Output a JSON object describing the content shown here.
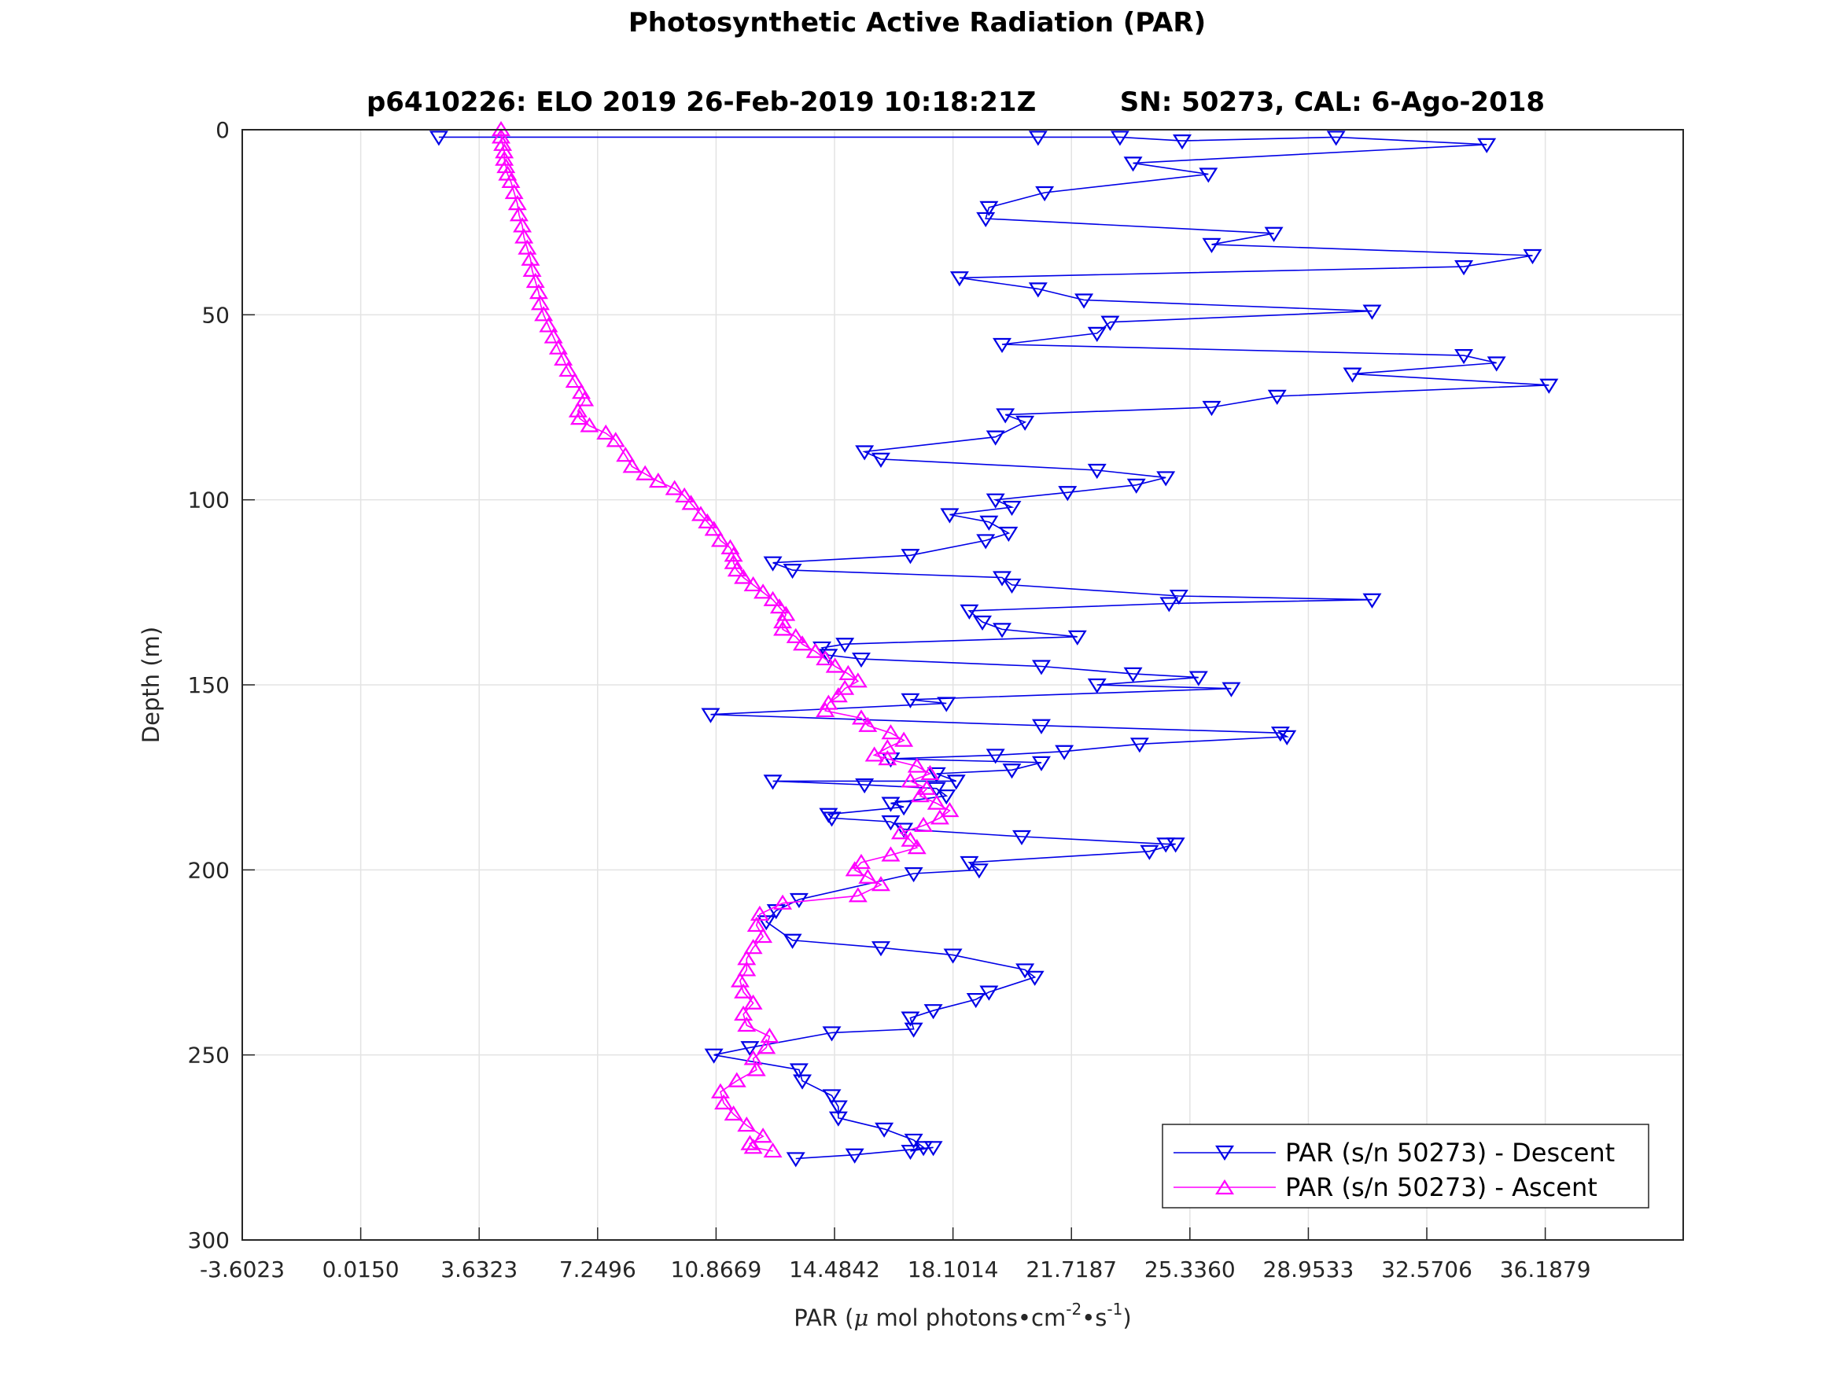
{
  "chart_data": {
    "type": "line",
    "title": "Photosynthetic Active Radiation (PAR)",
    "subtitle": "p6410226: ELO 2019 26-Feb-2019 10:18:21Z         SN: 50273, CAL: 6-Ago-2018",
    "xlabel": "PAR (μ mol photons•cm⁻²•s⁻¹)",
    "ylabel": "Depth (m)",
    "xlim": [
      -3.6023,
      40.4
    ],
    "ylim": [
      0,
      300
    ],
    "y_reversed": true,
    "grid": true,
    "legend_position": "bottom-right",
    "xticks": [
      -3.6023,
      0.015,
      3.6323,
      7.2496,
      10.8669,
      14.4842,
      18.1014,
      21.7187,
      25.336,
      28.9533,
      32.5706,
      36.1879
    ],
    "xtick_labels": [
      "-3.6023",
      "0.0150",
      "3.6323",
      "7.2496",
      "10.8669",
      "14.4842",
      "18.1014",
      "21.7187",
      "25.3360",
      "28.9533",
      "32.5706",
      "36.1879"
    ],
    "yticks": [
      0,
      50,
      100,
      150,
      200,
      250,
      300
    ],
    "ytick_labels": [
      "0",
      "50",
      "100",
      "150",
      "200",
      "250",
      "300"
    ],
    "series": [
      {
        "name": "PAR (s/n 50273) - Descent",
        "color": "#0000e6",
        "marker": "triangle-down",
        "points": [
          [
            2.4,
            2
          ],
          [
            20.7,
            2
          ],
          [
            23.2,
            2
          ],
          [
            25.1,
            3
          ],
          [
            29.8,
            2
          ],
          [
            34.4,
            4
          ],
          [
            23.6,
            9
          ],
          [
            25.9,
            12
          ],
          [
            20.9,
            17
          ],
          [
            19.2,
            21
          ],
          [
            19.1,
            24
          ],
          [
            27.9,
            28
          ],
          [
            26.0,
            31
          ],
          [
            35.8,
            34
          ],
          [
            33.7,
            37
          ],
          [
            18.3,
            40
          ],
          [
            20.7,
            43
          ],
          [
            22.1,
            46
          ],
          [
            30.9,
            49
          ],
          [
            22.9,
            52
          ],
          [
            22.5,
            55
          ],
          [
            19.6,
            58
          ],
          [
            33.7,
            61
          ],
          [
            34.7,
            63
          ],
          [
            30.3,
            66
          ],
          [
            36.3,
            69
          ],
          [
            28.0,
            72
          ],
          [
            26.0,
            75
          ],
          [
            19.7,
            77
          ],
          [
            20.3,
            79
          ],
          [
            19.4,
            83
          ],
          [
            15.4,
            87
          ],
          [
            15.9,
            89
          ],
          [
            22.5,
            92
          ],
          [
            24.6,
            94
          ],
          [
            23.7,
            96
          ],
          [
            21.6,
            98
          ],
          [
            19.4,
            100
          ],
          [
            19.9,
            102
          ],
          [
            18.0,
            104
          ],
          [
            19.2,
            106
          ],
          [
            19.8,
            109
          ],
          [
            19.1,
            111
          ],
          [
            16.8,
            115
          ],
          [
            12.6,
            117
          ],
          [
            13.2,
            119
          ],
          [
            19.6,
            121
          ],
          [
            19.9,
            123
          ],
          [
            25.0,
            126
          ],
          [
            30.9,
            127
          ],
          [
            24.7,
            128
          ],
          [
            18.6,
            130
          ],
          [
            19.0,
            133
          ],
          [
            19.6,
            135
          ],
          [
            21.9,
            137
          ],
          [
            14.8,
            139
          ],
          [
            14.1,
            140
          ],
          [
            14.3,
            142
          ],
          [
            15.3,
            143
          ],
          [
            20.8,
            145
          ],
          [
            23.6,
            147
          ],
          [
            25.6,
            148
          ],
          [
            22.5,
            150
          ],
          [
            26.6,
            151
          ],
          [
            16.8,
            154
          ],
          [
            17.9,
            155
          ],
          [
            10.7,
            158
          ],
          [
            20.8,
            161
          ],
          [
            28.1,
            163
          ],
          [
            28.3,
            164
          ],
          [
            23.8,
            166
          ],
          [
            21.5,
            168
          ],
          [
            19.4,
            169
          ],
          [
            16.2,
            170
          ],
          [
            20.8,
            171
          ],
          [
            19.9,
            173
          ],
          [
            17.6,
            174
          ],
          [
            18.2,
            176
          ],
          [
            12.6,
            176
          ],
          [
            15.4,
            177
          ],
          [
            17.6,
            178
          ],
          [
            17.9,
            180
          ],
          [
            16.2,
            182
          ],
          [
            16.6,
            183
          ],
          [
            14.3,
            185
          ],
          [
            14.4,
            186
          ],
          [
            16.2,
            187
          ],
          [
            16.6,
            189
          ],
          [
            20.2,
            191
          ],
          [
            24.6,
            193
          ],
          [
            24.9,
            193
          ],
          [
            24.1,
            195
          ],
          [
            18.6,
            198
          ],
          [
            18.9,
            200
          ],
          [
            16.9,
            201
          ],
          [
            13.4,
            208
          ],
          [
            12.7,
            211
          ],
          [
            12.4,
            214
          ],
          [
            13.2,
            219
          ],
          [
            15.9,
            221
          ],
          [
            18.1,
            223
          ],
          [
            20.3,
            227
          ],
          [
            20.6,
            229
          ],
          [
            19.2,
            233
          ],
          [
            18.8,
            235
          ],
          [
            17.5,
            238
          ],
          [
            16.8,
            240
          ],
          [
            16.9,
            243
          ],
          [
            14.4,
            244
          ],
          [
            11.9,
            248
          ],
          [
            10.8,
            250
          ],
          [
            13.4,
            254
          ],
          [
            13.5,
            257
          ],
          [
            14.4,
            261
          ],
          [
            14.6,
            264
          ],
          [
            14.6,
            267
          ],
          [
            16.0,
            270
          ],
          [
            16.9,
            273
          ],
          [
            17.2,
            275
          ],
          [
            16.8,
            276
          ],
          [
            17.5,
            275
          ],
          [
            15.1,
            277
          ],
          [
            13.3,
            278
          ]
        ]
      },
      {
        "name": "PAR (s/n 50273) - Ascent",
        "color": "#ff00ff",
        "marker": "triangle-up",
        "points": [
          [
            4.3,
            0
          ],
          [
            4.3,
            2
          ],
          [
            4.35,
            4
          ],
          [
            4.4,
            6
          ],
          [
            4.4,
            8
          ],
          [
            4.45,
            10
          ],
          [
            4.5,
            12
          ],
          [
            4.6,
            14
          ],
          [
            4.7,
            17
          ],
          [
            4.8,
            20
          ],
          [
            4.85,
            23
          ],
          [
            4.95,
            26
          ],
          [
            5.0,
            29
          ],
          [
            5.1,
            32
          ],
          [
            5.2,
            35
          ],
          [
            5.25,
            38
          ],
          [
            5.35,
            41
          ],
          [
            5.45,
            44
          ],
          [
            5.5,
            47
          ],
          [
            5.6,
            50
          ],
          [
            5.75,
            53
          ],
          [
            5.9,
            56
          ],
          [
            6.05,
            59
          ],
          [
            6.2,
            62
          ],
          [
            6.35,
            65
          ],
          [
            6.55,
            68
          ],
          [
            6.75,
            71
          ],
          [
            6.85,
            73
          ],
          [
            6.65,
            76
          ],
          [
            6.7,
            78
          ],
          [
            7.0,
            80
          ],
          [
            7.5,
            82
          ],
          [
            7.8,
            84
          ],
          [
            8.1,
            88
          ],
          [
            8.3,
            91
          ],
          [
            8.7,
            93
          ],
          [
            9.1,
            95
          ],
          [
            9.6,
            97
          ],
          [
            9.9,
            99
          ],
          [
            10.1,
            101
          ],
          [
            10.4,
            104
          ],
          [
            10.6,
            106
          ],
          [
            10.8,
            108
          ],
          [
            11.0,
            111
          ],
          [
            11.3,
            113
          ],
          [
            11.4,
            115
          ],
          [
            11.4,
            117
          ],
          [
            11.5,
            119
          ],
          [
            11.7,
            121
          ],
          [
            12.0,
            123
          ],
          [
            12.3,
            125
          ],
          [
            12.6,
            127
          ],
          [
            12.8,
            129
          ],
          [
            13.0,
            131
          ],
          [
            12.9,
            133
          ],
          [
            12.9,
            135
          ],
          [
            13.3,
            137
          ],
          [
            13.5,
            139
          ],
          [
            13.9,
            141
          ],
          [
            14.2,
            143
          ],
          [
            14.5,
            145
          ],
          [
            14.9,
            147
          ],
          [
            15.2,
            149
          ],
          [
            14.8,
            151
          ],
          [
            14.6,
            153
          ],
          [
            14.3,
            155
          ],
          [
            14.2,
            157
          ],
          [
            15.3,
            159
          ],
          [
            15.5,
            161
          ],
          [
            16.2,
            163
          ],
          [
            16.6,
            165
          ],
          [
            16.1,
            167
          ],
          [
            15.7,
            169
          ],
          [
            16.1,
            170
          ],
          [
            17.0,
            172
          ],
          [
            17.4,
            174
          ],
          [
            16.8,
            176
          ],
          [
            17.3,
            178
          ],
          [
            17.1,
            180
          ],
          [
            17.6,
            182
          ],
          [
            18.0,
            184
          ],
          [
            17.7,
            186
          ],
          [
            17.2,
            188
          ],
          [
            16.5,
            190
          ],
          [
            16.8,
            192
          ],
          [
            17.0,
            194
          ],
          [
            16.2,
            196
          ],
          [
            15.3,
            198
          ],
          [
            15.1,
            200
          ],
          [
            15.5,
            202
          ],
          [
            15.9,
            204
          ],
          [
            15.2,
            207
          ],
          [
            12.9,
            209
          ],
          [
            12.2,
            212
          ],
          [
            12.1,
            215
          ],
          [
            12.3,
            218
          ],
          [
            12.0,
            221
          ],
          [
            11.8,
            224
          ],
          [
            11.8,
            227
          ],
          [
            11.6,
            230
          ],
          [
            11.7,
            233
          ],
          [
            12.0,
            236
          ],
          [
            11.7,
            239
          ],
          [
            11.8,
            242
          ],
          [
            12.5,
            245
          ],
          [
            12.4,
            248
          ],
          [
            12.0,
            251
          ],
          [
            12.1,
            254
          ],
          [
            11.5,
            257
          ],
          [
            11.0,
            260
          ],
          [
            11.1,
            263
          ],
          [
            11.4,
            266
          ],
          [
            11.8,
            269
          ],
          [
            12.3,
            272
          ],
          [
            11.9,
            274
          ],
          [
            12.0,
            275
          ],
          [
            12.6,
            276
          ]
        ]
      }
    ]
  }
}
